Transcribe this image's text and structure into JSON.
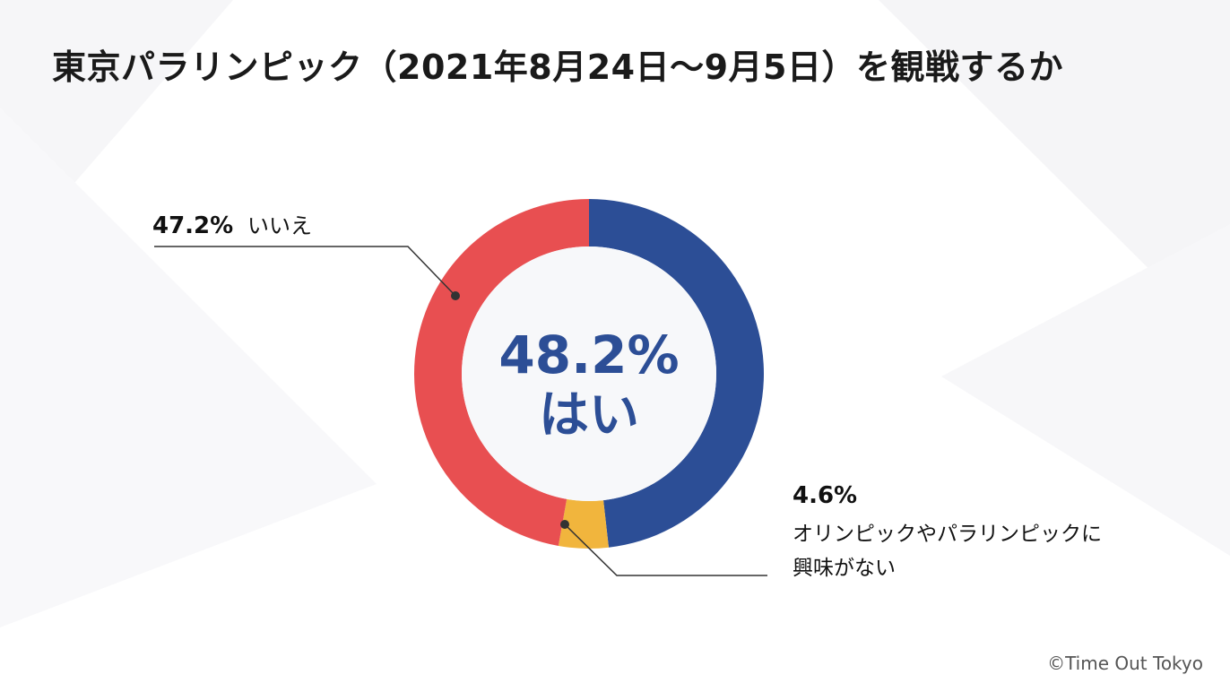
{
  "title": "東京パラリンピック（2021年8月24日〜9月5日）を観戦するか",
  "credit": "©Time Out Tokyo",
  "colors": {
    "yes": "#2c4e96",
    "no": "#e84f51",
    "not_interested": "#f1b53d",
    "center_text": "#2c4e96"
  },
  "chart_data": {
    "type": "pie",
    "title": "東京パラリンピック（2021年8月24日〜9月5日）を観戦するか",
    "variant": "donut",
    "slices": [
      {
        "key": "yes",
        "label": "はい",
        "value": 48.2,
        "pct_label": "48.2%"
      },
      {
        "key": "not_interested",
        "label_lines": [
          "オリンピックやパラリンピックに",
          "興味がない"
        ],
        "value": 4.6,
        "pct_label": "4.6%"
      },
      {
        "key": "no",
        "label": "いいえ",
        "value": 47.2,
        "pct_label": "47.2%"
      }
    ]
  }
}
